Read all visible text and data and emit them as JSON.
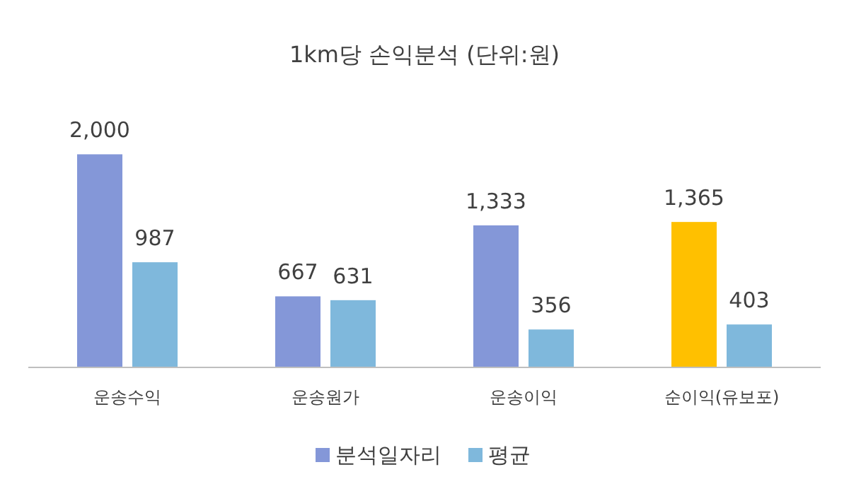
{
  "chart_data": {
    "type": "bar",
    "title": "1km당 손익분석 (단위:원)",
    "categories": [
      "운송수익",
      "운송원가",
      "운송이익",
      "순이익(유보포)"
    ],
    "series": [
      {
        "name": "분석일자리",
        "color": "#8497d8",
        "colors": [
          "#8497d8",
          "#8497d8",
          "#8497d8",
          "#ffc000"
        ],
        "values": [
          2000,
          667,
          1333,
          1365
        ],
        "value_labels": [
          "2,000",
          "667",
          "1,333",
          "1,365"
        ]
      },
      {
        "name": "평균",
        "color": "#7fb8dc",
        "values": [
          987,
          631,
          356,
          403
        ],
        "value_labels": [
          "987",
          "631",
          "356",
          "403"
        ]
      }
    ],
    "legend": "bottom"
  }
}
